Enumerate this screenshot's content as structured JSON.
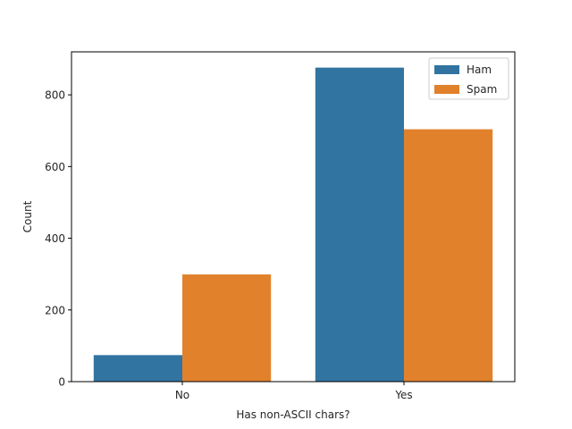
{
  "chart_data": {
    "type": "bar",
    "categories": [
      "No",
      "Yes"
    ],
    "series": [
      {
        "name": "Ham",
        "values": [
          74,
          876
        ],
        "color": "#3274a1"
      },
      {
        "name": "Spam",
        "values": [
          299,
          704
        ],
        "color": "#e1812c"
      }
    ],
    "xlabel": "Has non-ASCII chars?",
    "ylabel": "Count",
    "ylim": [
      0,
      920
    ],
    "yticks": [
      0,
      200,
      400,
      600,
      800
    ],
    "grid": false,
    "legend_position": "top-right"
  }
}
